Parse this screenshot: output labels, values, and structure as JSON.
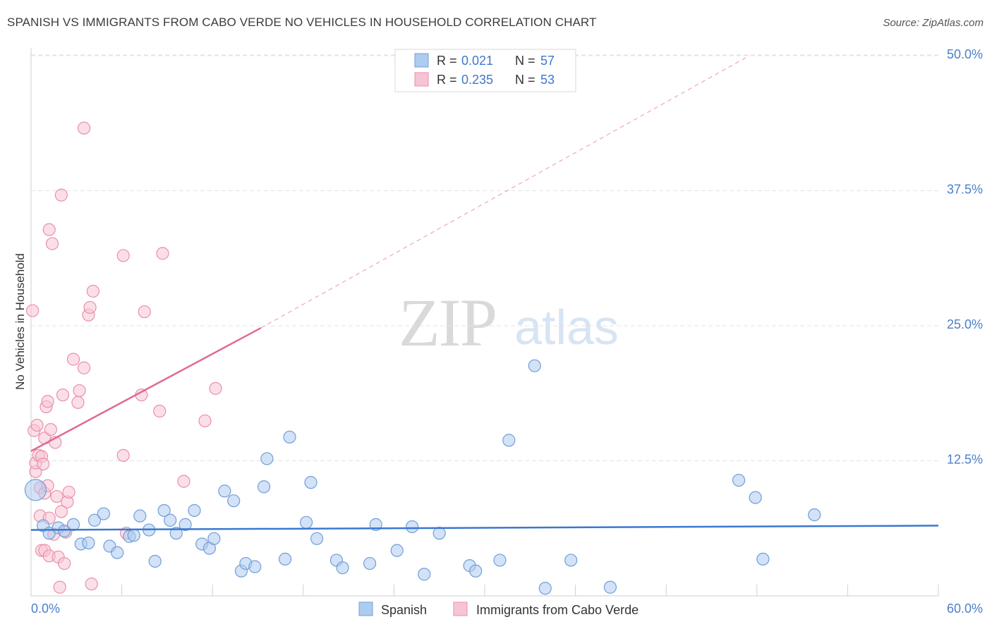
{
  "header": {
    "title": "SPANISH VS IMMIGRANTS FROM CABO VERDE NO VEHICLES IN HOUSEHOLD CORRELATION CHART",
    "source": "Source: ZipAtlas.com"
  },
  "watermark": {
    "zip": "ZIP",
    "atlas": "atlas"
  },
  "colors": {
    "spanish_fill": "#aecbf0",
    "spanish_stroke": "#6f9fd8",
    "spanish_line": "#3b78d0",
    "cabo_fill": "#f7c4d4",
    "cabo_stroke": "#ea8fab",
    "cabo_line": "#e06a93",
    "tick_label": "#4a7fc9",
    "grid": "#e3e3e3"
  },
  "legend_top": [
    {
      "series": "spanish",
      "r_label": "R = ",
      "r_value": "0.021",
      "n_label": "N = ",
      "n_value": "57"
    },
    {
      "series": "cabo",
      "r_label": "R = ",
      "r_value": "0.235",
      "n_label": "N = ",
      "n_value": "53"
    }
  ],
  "chart_data": {
    "type": "scatter",
    "title": "SPANISH VS IMMIGRANTS FROM CABO VERDE NO VEHICLES IN HOUSEHOLD CORRELATION CHART",
    "xlabel": "",
    "ylabel": "No Vehicles in Household",
    "xlim": [
      0,
      60
    ],
    "ylim": [
      0,
      52
    ],
    "x_tick_labels": [
      {
        "value": 0,
        "label": "0.0%"
      },
      {
        "value": 60,
        "label": "60.0%"
      }
    ],
    "x_minor_ticks": [
      6,
      12,
      18,
      24,
      30,
      36,
      42,
      48,
      54,
      60
    ],
    "y_ticks": [
      {
        "value": 12.5,
        "label": "12.5%"
      },
      {
        "value": 25,
        "label": "25.0%"
      },
      {
        "value": 37.5,
        "label": "37.5%"
      },
      {
        "value": 50,
        "label": "50.0%"
      }
    ],
    "legend_position": "bottom-center",
    "series": [
      {
        "name": "Spanish",
        "key": "spanish",
        "R": 0.021,
        "N": 57,
        "trend": {
          "x0": 0,
          "y0": 6.1,
          "x1": 60,
          "y1": 6.5,
          "dashed_extension": false
        },
        "points": [
          [
            0.3,
            9.8
          ],
          [
            0.8,
            6.5
          ],
          [
            1.2,
            5.8
          ],
          [
            1.8,
            6.3
          ],
          [
            2.2,
            6.0
          ],
          [
            2.8,
            6.6
          ],
          [
            3.3,
            4.8
          ],
          [
            3.8,
            4.9
          ],
          [
            4.2,
            7.0
          ],
          [
            4.8,
            7.6
          ],
          [
            5.2,
            4.6
          ],
          [
            5.7,
            4.0
          ],
          [
            6.5,
            5.5
          ],
          [
            6.8,
            5.6
          ],
          [
            7.2,
            7.4
          ],
          [
            7.8,
            6.1
          ],
          [
            8.2,
            3.2
          ],
          [
            8.8,
            7.9
          ],
          [
            9.2,
            7.0
          ],
          [
            9.6,
            5.8
          ],
          [
            10.2,
            6.6
          ],
          [
            10.8,
            7.9
          ],
          [
            11.3,
            4.8
          ],
          [
            11.8,
            4.4
          ],
          [
            12.1,
            5.3
          ],
          [
            12.8,
            9.7
          ],
          [
            13.4,
            8.8
          ],
          [
            13.9,
            2.3
          ],
          [
            14.2,
            3.0
          ],
          [
            14.8,
            2.7
          ],
          [
            15.4,
            10.1
          ],
          [
            15.6,
            12.7
          ],
          [
            16.8,
            3.4
          ],
          [
            17.1,
            14.7
          ],
          [
            18.5,
            10.5
          ],
          [
            18.2,
            6.8
          ],
          [
            18.9,
            5.3
          ],
          [
            20.2,
            3.3
          ],
          [
            20.6,
            2.6
          ],
          [
            22.4,
            3.0
          ],
          [
            22.8,
            6.6
          ],
          [
            24.2,
            4.2
          ],
          [
            25.2,
            6.4
          ],
          [
            26.0,
            2.0
          ],
          [
            27.0,
            5.8
          ],
          [
            29.0,
            2.8
          ],
          [
            29.4,
            2.3
          ],
          [
            31.0,
            3.3
          ],
          [
            31.6,
            14.4
          ],
          [
            33.3,
            21.3
          ],
          [
            34.0,
            0.7
          ],
          [
            35.7,
            3.3
          ],
          [
            38.3,
            0.8
          ],
          [
            46.8,
            10.7
          ],
          [
            47.9,
            9.1
          ],
          [
            48.4,
            3.4
          ],
          [
            51.8,
            7.5
          ]
        ]
      },
      {
        "name": "Immigrants from Cabo Verde",
        "key": "cabo",
        "R": 0.235,
        "N": 53,
        "trend": {
          "x0": 0,
          "y0": 13.4,
          "x1": 15.2,
          "y1": 24.8,
          "ext_x1": 47.5,
          "ext_y1": 50.0,
          "dashed_extension": true
        },
        "points": [
          [
            0.1,
            26.4
          ],
          [
            0.2,
            15.3
          ],
          [
            0.3,
            11.5
          ],
          [
            0.3,
            12.3
          ],
          [
            0.4,
            15.8
          ],
          [
            0.5,
            13.0
          ],
          [
            0.6,
            10.0
          ],
          [
            0.6,
            7.4
          ],
          [
            0.7,
            12.9
          ],
          [
            0.7,
            4.2
          ],
          [
            0.8,
            12.2
          ],
          [
            0.9,
            4.2
          ],
          [
            0.9,
            9.5
          ],
          [
            0.9,
            14.6
          ],
          [
            1.0,
            17.5
          ],
          [
            1.1,
            18.0
          ],
          [
            1.1,
            10.2
          ],
          [
            1.2,
            7.2
          ],
          [
            1.2,
            3.7
          ],
          [
            1.3,
            15.4
          ],
          [
            1.4,
            32.6
          ],
          [
            1.5,
            5.7
          ],
          [
            1.6,
            14.2
          ],
          [
            1.7,
            9.2
          ],
          [
            1.8,
            3.6
          ],
          [
            1.9,
            0.8
          ],
          [
            2.0,
            37.1
          ],
          [
            2.0,
            7.8
          ],
          [
            2.1,
            18.6
          ],
          [
            2.2,
            3.0
          ],
          [
            2.3,
            5.9
          ],
          [
            2.4,
            8.7
          ],
          [
            2.5,
            9.6
          ],
          [
            2.8,
            21.9
          ],
          [
            3.1,
            17.9
          ],
          [
            3.2,
            19.0
          ],
          [
            3.5,
            21.1
          ],
          [
            3.5,
            43.3
          ],
          [
            3.8,
            26.0
          ],
          [
            3.9,
            26.7
          ],
          [
            4.0,
            1.1
          ],
          [
            4.1,
            28.2
          ],
          [
            1.2,
            33.9
          ],
          [
            6.1,
            31.5
          ],
          [
            6.1,
            13.0
          ],
          [
            6.3,
            5.8
          ],
          [
            7.3,
            18.6
          ],
          [
            7.5,
            26.3
          ],
          [
            8.5,
            17.1
          ],
          [
            8.7,
            31.7
          ],
          [
            10.1,
            10.6
          ],
          [
            11.5,
            16.2
          ],
          [
            12.2,
            19.2
          ]
        ]
      }
    ]
  },
  "legend_bottom": [
    {
      "series": "spanish",
      "label": "Spanish"
    },
    {
      "series": "cabo",
      "label": "Immigrants from Cabo Verde"
    }
  ]
}
